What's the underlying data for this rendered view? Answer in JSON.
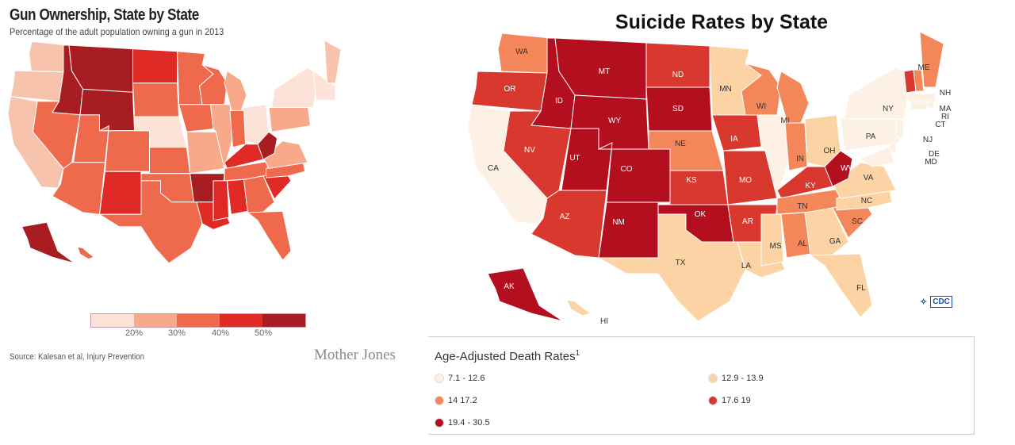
{
  "left": {
    "title": "Gun Ownership, State by State",
    "subtitle": "Percentage of the adult population owning a gun in 2013",
    "source": "Source: Kalesan et al, Injury Prevention",
    "brand": "Mother Jones",
    "legend_ticks": [
      "20%",
      "30%",
      "40%",
      "50%"
    ],
    "legend_colors": [
      "#fde3d7",
      "#f8a98a",
      "#ef6a4c",
      "#df2a26",
      "#a81d22"
    ],
    "states": [
      {
        "code": "WA",
        "color": "#f8c3ac"
      },
      {
        "code": "OR",
        "color": "#f8c3ac"
      },
      {
        "code": "CA",
        "color": "#f8c3ac"
      },
      {
        "code": "ID",
        "color": "#a81d22"
      },
      {
        "code": "NV",
        "color": "#ef6a4c"
      },
      {
        "code": "UT",
        "color": "#ef6a4c"
      },
      {
        "code": "AZ",
        "color": "#ef6a4c"
      },
      {
        "code": "MT",
        "color": "#a81d22"
      },
      {
        "code": "WY",
        "color": "#a81d22"
      },
      {
        "code": "CO",
        "color": "#ef6a4c"
      },
      {
        "code": "NM",
        "color": "#df2a26"
      },
      {
        "code": "ND",
        "color": "#df2a26"
      },
      {
        "code": "SD",
        "color": "#ef6a4c"
      },
      {
        "code": "NE",
        "color": "#fde3d7"
      },
      {
        "code": "KS",
        "color": "#ef6a4c"
      },
      {
        "code": "OK",
        "color": "#ef6a4c"
      },
      {
        "code": "TX",
        "color": "#ef6a4c"
      },
      {
        "code": "MN",
        "color": "#ef6a4c"
      },
      {
        "code": "IA",
        "color": "#ef6a4c"
      },
      {
        "code": "MO",
        "color": "#f8a98a"
      },
      {
        "code": "AR",
        "color": "#a81d22"
      },
      {
        "code": "LA",
        "color": "#df2a26"
      },
      {
        "code": "WI",
        "color": "#ef6a4c"
      },
      {
        "code": "IL",
        "color": "#f8a98a"
      },
      {
        "code": "MI",
        "color": "#f8a98a"
      },
      {
        "code": "IN",
        "color": "#ef6a4c"
      },
      {
        "code": "OH",
        "color": "#fde3d7"
      },
      {
        "code": "KY",
        "color": "#df2a26"
      },
      {
        "code": "TN",
        "color": "#ef6a4c"
      },
      {
        "code": "MS",
        "color": "#df2a26"
      },
      {
        "code": "AL",
        "color": "#df2a26"
      },
      {
        "code": "GA",
        "color": "#ef6a4c"
      },
      {
        "code": "FL",
        "color": "#ef6a4c"
      },
      {
        "code": "SC",
        "color": "#df2a26"
      },
      {
        "code": "NC",
        "color": "#ef6a4c"
      },
      {
        "code": "VA",
        "color": "#f8a98a"
      },
      {
        "code": "WV",
        "color": "#a81d22"
      },
      {
        "code": "PA",
        "color": "#f8a98a"
      },
      {
        "code": "NY",
        "color": "#fde3d7"
      },
      {
        "code": "NE-region",
        "color": "#fde3d7"
      },
      {
        "code": "ME",
        "color": "#f8c3ac"
      },
      {
        "code": "AK",
        "color": "#a81d22"
      },
      {
        "code": "HI",
        "color": "#ef6a4c"
      }
    ]
  },
  "right": {
    "title": "Suicide Rates by State",
    "legend_title": "Age-Adjusted Death Rates",
    "legend_sup": "1",
    "legend_items": [
      {
        "label": "7.1 - 12.6",
        "color": "#fdf1e6"
      },
      {
        "label": "12.9 - 13.9",
        "color": "#fbd3a4"
      },
      {
        "label": "14   17.2",
        "color": "#f3875a"
      },
      {
        "label": "17.6   19",
        "color": "#d9382e"
      },
      {
        "label": "19.4 - 30.5",
        "color": "#b30f1e"
      }
    ],
    "logo_text": "CDC",
    "states": [
      {
        "code": "WA",
        "color": "#f3875a"
      },
      {
        "code": "OR",
        "color": "#d9382e"
      },
      {
        "code": "CA",
        "color": "#fdf1e6"
      },
      {
        "code": "ID",
        "color": "#b30f1e"
      },
      {
        "code": "NV",
        "color": "#d9382e"
      },
      {
        "code": "UT",
        "color": "#b30f1e"
      },
      {
        "code": "AZ",
        "color": "#d9382e"
      },
      {
        "code": "MT",
        "color": "#b30f1e"
      },
      {
        "code": "WY",
        "color": "#b30f1e"
      },
      {
        "code": "CO",
        "color": "#b30f1e"
      },
      {
        "code": "NM",
        "color": "#b30f1e"
      },
      {
        "code": "ND",
        "color": "#d9382e"
      },
      {
        "code": "SD",
        "color": "#b30f1e"
      },
      {
        "code": "NE",
        "color": "#f3875a"
      },
      {
        "code": "KS",
        "color": "#d9382e"
      },
      {
        "code": "OK",
        "color": "#b30f1e"
      },
      {
        "code": "TX",
        "color": "#fbd3a4"
      },
      {
        "code": "MN",
        "color": "#fbd3a4"
      },
      {
        "code": "IA",
        "color": "#d9382e"
      },
      {
        "code": "MO",
        "color": "#d9382e"
      },
      {
        "code": "AR",
        "color": "#d9382e"
      },
      {
        "code": "LA",
        "color": "#fbd3a4"
      },
      {
        "code": "WI",
        "color": "#f3875a"
      },
      {
        "code": "IL",
        "color": "#fdf1e6"
      },
      {
        "code": "MI",
        "color": "#f3875a"
      },
      {
        "code": "IN",
        "color": "#f3875a"
      },
      {
        "code": "OH",
        "color": "#fbd3a4"
      },
      {
        "code": "KY",
        "color": "#d9382e"
      },
      {
        "code": "TN",
        "color": "#f3875a"
      },
      {
        "code": "MS",
        "color": "#fbd3a4"
      },
      {
        "code": "AL",
        "color": "#f3875a"
      },
      {
        "code": "GA",
        "color": "#fbd3a4"
      },
      {
        "code": "FL",
        "color": "#fbd3a4"
      },
      {
        "code": "SC",
        "color": "#f3875a"
      },
      {
        "code": "NC",
        "color": "#fbd3a4"
      },
      {
        "code": "VA",
        "color": "#fbd3a4"
      },
      {
        "code": "WV",
        "color": "#b30f1e"
      },
      {
        "code": "PA",
        "color": "#fdf1e6"
      },
      {
        "code": "NY",
        "color": "#fdf1e6"
      },
      {
        "code": "ME",
        "color": "#f3875a"
      },
      {
        "code": "VT",
        "color": "#d9382e"
      },
      {
        "code": "NH",
        "color": "#f3875a"
      },
      {
        "code": "MA",
        "color": "#fdf1e6"
      },
      {
        "code": "RI",
        "color": "#fdf1e6"
      },
      {
        "code": "CT",
        "color": "#fdf1e6"
      },
      {
        "code": "NJ",
        "color": "#fdf1e6"
      },
      {
        "code": "DE",
        "color": "#fdf1e6"
      },
      {
        "code": "MD",
        "color": "#fdf1e6"
      },
      {
        "code": "AK",
        "color": "#b30f1e"
      },
      {
        "code": "HI",
        "color": "#fbd3a4"
      }
    ]
  }
}
